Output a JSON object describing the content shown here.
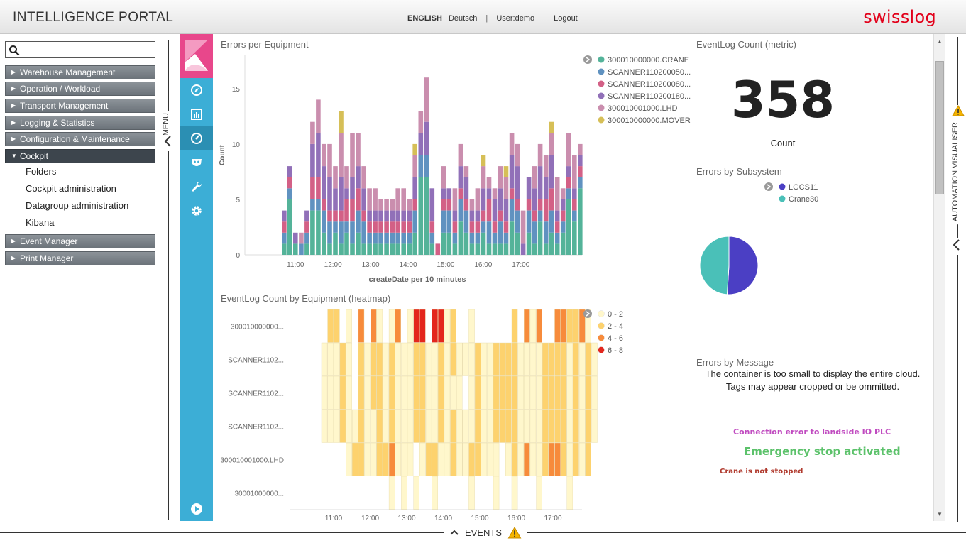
{
  "header": {
    "title": "INTELLIGENCE PORTAL",
    "lang_active": "ENGLISH",
    "lang_other": "Deutsch",
    "separator": "|",
    "user": "User:demo",
    "logout": "Logout",
    "brand": "swisslog",
    "brand_color": "#e2001a"
  },
  "menu": {
    "search_placeholder": "",
    "toggle_label": "MENU",
    "items": [
      {
        "label": "Warehouse Management"
      },
      {
        "label": "Operation / Workload"
      },
      {
        "label": "Transport Management"
      },
      {
        "label": "Logging & Statistics"
      },
      {
        "label": "Configuration & Maintenance"
      },
      {
        "label": "Cockpit"
      }
    ],
    "cockpit_sub": [
      {
        "label": "Folders"
      },
      {
        "label": "Cockpit administration"
      },
      {
        "label": "Datagroup administration"
      },
      {
        "label": "Kibana"
      }
    ],
    "items_after": [
      {
        "label": "Event Manager"
      },
      {
        "label": "Print Manager"
      }
    ]
  },
  "kibana_nav": {
    "icons": [
      "discover-icon",
      "visualize-icon",
      "dashboard-icon",
      "timelion-icon",
      "dev-tools-icon",
      "management-icon"
    ],
    "bottom_icon": "collapse-play-icon",
    "accent": "#3caed6",
    "logo_color": "#e8478b"
  },
  "panels": {
    "errors_per_equipment": "Errors per Equipment",
    "metric_title": "EventLog Count (metric)",
    "heatmap_title": "EventLog Count by Equipment (heatmap)",
    "subsystem_title": "Errors by Subsystem",
    "message_title": "Errors by Message"
  },
  "metric": {
    "value": "358",
    "label": "Count"
  },
  "cloud": {
    "message_line1": "The container is too small to display the entire cloud.",
    "message_line2": "Tags may appear cropped or be ommitted.",
    "tags": [
      {
        "text": "Connection error to landside IO PLC",
        "color": "#c04bc0"
      },
      {
        "text": "Emergency stop activated",
        "color": "#5cc26b"
      },
      {
        "text": "Crane is not stopped",
        "color": "#b03a2e"
      }
    ]
  },
  "chart_data": [
    {
      "type": "bar",
      "title": "Errors per Equipment",
      "xlabel": "createDate per 10 minutes",
      "ylabel": "Count",
      "ylim": [
        0,
        18
      ],
      "yticks": [
        0,
        5,
        10,
        15
      ],
      "xtick_labels": [
        "11:00",
        "12:00",
        "13:00",
        "14:00",
        "15:00",
        "16:00",
        "17:00"
      ],
      "stacked": true,
      "legend_position": "right",
      "series": [
        {
          "name": "300010000000.CRANE",
          "color": "#54b399",
          "values": [
            1,
            5,
            1,
            0,
            1,
            4,
            4,
            2,
            1,
            2,
            1,
            2,
            1,
            2,
            1,
            1,
            1,
            1,
            1,
            1,
            1,
            1,
            1,
            2,
            7,
            7,
            1,
            0,
            2,
            2,
            1,
            3,
            2,
            1,
            1,
            2,
            1,
            1,
            1,
            1,
            3,
            2,
            0,
            2,
            1,
            3,
            1,
            2,
            1,
            2,
            5,
            3,
            6
          ]
        },
        {
          "name": "SCANNER110200050...",
          "color": "#6092c0",
          "values": [
            1,
            1,
            0,
            1,
            1,
            1,
            1,
            2,
            2,
            1,
            2,
            1,
            2,
            2,
            2,
            1,
            1,
            1,
            1,
            1,
            1,
            1,
            1,
            2,
            2,
            2,
            1,
            0,
            2,
            2,
            1,
            2,
            2,
            1,
            1,
            1,
            2,
            1,
            2,
            1,
            2,
            2,
            0,
            2,
            2,
            1,
            2,
            2,
            1,
            1,
            1,
            1,
            1
          ]
        },
        {
          "name": "SCANNER110200080...",
          "color": "#d36086",
          "values": [
            1,
            1,
            0,
            0,
            1,
            2,
            2,
            1,
            1,
            1,
            1,
            2,
            2,
            2,
            1,
            1,
            1,
            1,
            1,
            1,
            1,
            1,
            1,
            1,
            0,
            0,
            1,
            1,
            1,
            1,
            1,
            1,
            1,
            1,
            1,
            1,
            2,
            1,
            1,
            1,
            1,
            1,
            0,
            1,
            1,
            1,
            2,
            2,
            1,
            1,
            1,
            1,
            1
          ]
        },
        {
          "name": "SCANNER110200180...",
          "color": "#9170b8",
          "values": [
            1,
            1,
            1,
            0,
            1,
            3,
            4,
            3,
            3,
            2,
            3,
            1,
            2,
            2,
            2,
            1,
            1,
            1,
            1,
            1,
            1,
            1,
            1,
            2,
            2,
            3,
            3,
            0,
            1,
            1,
            1,
            2,
            2,
            1,
            1,
            2,
            1,
            2,
            2,
            2,
            3,
            3,
            1,
            2,
            2,
            3,
            2,
            3,
            1,
            1,
            1,
            1,
            1
          ]
        },
        {
          "name": "300010001000.LHD",
          "color": "#ca8eae",
          "values": [
            0,
            0,
            0,
            1,
            0,
            2,
            3,
            2,
            3,
            2,
            4,
            2,
            4,
            3,
            2,
            2,
            2,
            1,
            1,
            1,
            2,
            2,
            1,
            2,
            2,
            4,
            0,
            0,
            2,
            0,
            2,
            2,
            1,
            1,
            2,
            2,
            1,
            1,
            2,
            2,
            2,
            2,
            3,
            0,
            2,
            2,
            2,
            2,
            3,
            1,
            3,
            3,
            1
          ]
        },
        {
          "name": "300010000000.MOVER",
          "color": "#d6bf57",
          "values": [
            0,
            0,
            0,
            0,
            0,
            0,
            0,
            0,
            0,
            0,
            2,
            0,
            0,
            0,
            0,
            0,
            0,
            0,
            0,
            0,
            0,
            0,
            0,
            1,
            0,
            0,
            0,
            0,
            0,
            0,
            0,
            0,
            0,
            0,
            0,
            1,
            0,
            0,
            0,
            1,
            0,
            0,
            0,
            0,
            0,
            0,
            0,
            1,
            0,
            0,
            0,
            0,
            0
          ]
        }
      ]
    },
    {
      "type": "heatmap",
      "title": "EventLog Count by Equipment (heatmap)",
      "y_categories": [
        "300010000000...",
        "SCANNER1102...",
        "SCANNER1102...",
        "SCANNER1102...",
        "300010001000.LHD",
        "30001000000..."
      ],
      "xtick_labels": [
        "11:00",
        "12:00",
        "13:00",
        "14:00",
        "15:00",
        "16:00",
        "17:00"
      ],
      "legend": [
        {
          "label": "0 - 2",
          "color": "#fff7cc"
        },
        {
          "label": "2 - 4",
          "color": "#fdd26e"
        },
        {
          "label": "4 - 6",
          "color": "#f78b3b"
        },
        {
          "label": "6 - 8",
          "color": "#e3261d"
        }
      ],
      "rows": [
        [
          0,
          2,
          2,
          0,
          1,
          0,
          3,
          0,
          3,
          1,
          0,
          1,
          3,
          0,
          1,
          4,
          4,
          0,
          4,
          4,
          1,
          2,
          0,
          0,
          1,
          0,
          0,
          0,
          0,
          0,
          0,
          2,
          0,
          3,
          1,
          3,
          0,
          0,
          3,
          3,
          2,
          2,
          3,
          1,
          0
        ],
        [
          1,
          1,
          1,
          2,
          1,
          0,
          2,
          1,
          2,
          2,
          1,
          2,
          1,
          1,
          1,
          2,
          2,
          1,
          1,
          2,
          1,
          2,
          1,
          1,
          1,
          2,
          1,
          1,
          2,
          2,
          2,
          2,
          1,
          1,
          1,
          1,
          2,
          2,
          2,
          2,
          1,
          2,
          1,
          2,
          1
        ],
        [
          1,
          1,
          1,
          2,
          1,
          0,
          2,
          1,
          2,
          2,
          1,
          2,
          1,
          1,
          1,
          2,
          2,
          1,
          1,
          2,
          1,
          1,
          1,
          0,
          1,
          2,
          1,
          1,
          2,
          2,
          2,
          2,
          1,
          1,
          1,
          1,
          2,
          2,
          2,
          2,
          1,
          2,
          1,
          2,
          1
        ],
        [
          1,
          1,
          1,
          2,
          1,
          1,
          2,
          1,
          1,
          2,
          1,
          2,
          1,
          1,
          1,
          2,
          2,
          1,
          1,
          2,
          1,
          2,
          1,
          1,
          1,
          2,
          1,
          1,
          2,
          2,
          2,
          2,
          1,
          1,
          1,
          1,
          2,
          2,
          2,
          2,
          1,
          2,
          1,
          2,
          1
        ],
        [
          0,
          0,
          0,
          0,
          1,
          2,
          2,
          1,
          1,
          2,
          2,
          3,
          1,
          1,
          1,
          0,
          1,
          2,
          2,
          1,
          1,
          2,
          1,
          1,
          2,
          2,
          1,
          1,
          1,
          0,
          1,
          2,
          1,
          3,
          1,
          1,
          2,
          3,
          3,
          2,
          1,
          2,
          1,
          2,
          0
        ],
        [
          0,
          0,
          0,
          0,
          0,
          0,
          0,
          0,
          0,
          0,
          0,
          1,
          0,
          1,
          0,
          1,
          0,
          0,
          1,
          0,
          0,
          0,
          0,
          0,
          1,
          0,
          0,
          0,
          1,
          0,
          0,
          1,
          0,
          0,
          0,
          1,
          0,
          0,
          0,
          0,
          1,
          0,
          0,
          0,
          0
        ]
      ]
    },
    {
      "type": "pie",
      "title": "Errors by Subsystem",
      "legend_position": "top",
      "slices": [
        {
          "label": "LGCS11",
          "value": 51,
          "color": "#4b3fc4"
        },
        {
          "label": "Crane30",
          "value": 49,
          "color": "#4ac0b8"
        }
      ]
    }
  ],
  "right_panel": {
    "label": "AUTOMATION VISUALISER",
    "warning_icon": "warning-icon"
  },
  "events": {
    "label": "EVENTS",
    "icon": "warning-icon"
  }
}
